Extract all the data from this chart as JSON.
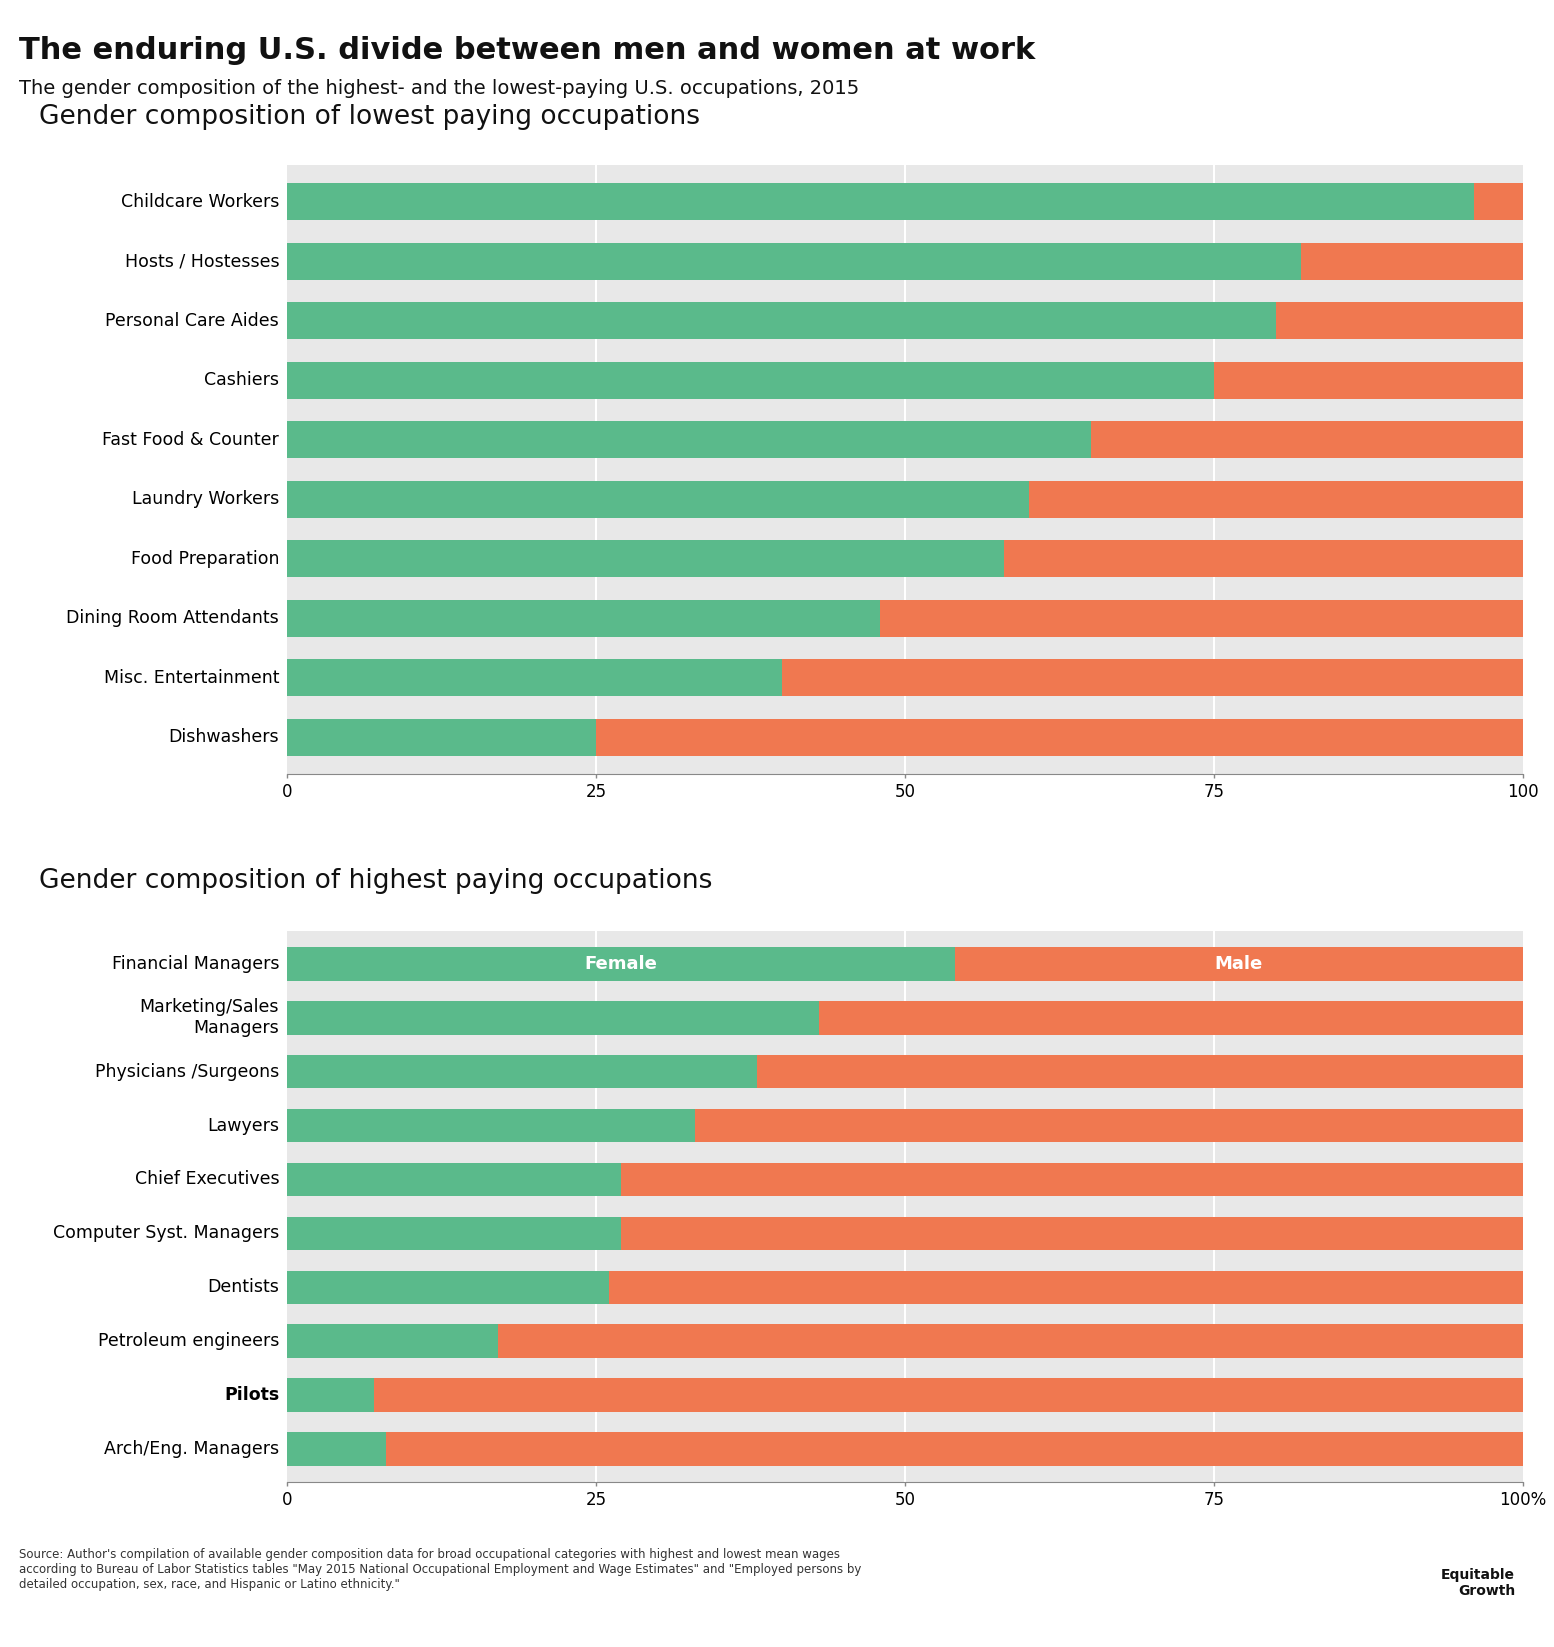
{
  "title": "The enduring U.S. divide between men and women at work",
  "subtitle": "The gender composition of the highest- and the lowest-paying U.S. occupations, 2015",
  "female_color": "#5aba8b",
  "male_color": "#f07850",
  "bg_color": "#e8e8e8",
  "white_color": "#ffffff",
  "top_chart_title": "Gender composition of highest paying occupations",
  "bottom_chart_title": "Gender composition of lowest paying occupations",
  "highest_occupations": [
    "Financial Managers",
    "Marketing/Sales\nManagers",
    "Physicians /Surgeons",
    "Lawyers",
    "Chief Executives",
    "Computer Syst. Managers",
    "Dentists",
    "Petroleum engineers",
    "Pilots",
    "Arch/Eng. Managers"
  ],
  "highest_female": [
    54,
    43,
    38,
    33,
    27,
    27,
    26,
    17,
    7,
    8
  ],
  "lowest_occupations": [
    "Childcare Workers",
    "Hosts / Hostesses",
    "Personal Care Aides",
    "Cashiers",
    "Fast Food & Counter",
    "Laundry Workers",
    "Food Preparation",
    "Dining Room Attendants",
    "Misc. Entertainment",
    "Dishwashers"
  ],
  "lowest_female": [
    96,
    82,
    80,
    75,
    65,
    60,
    58,
    48,
    40,
    25
  ],
  "source_text": "Source: Author's compilation of available gender composition data for broad occupational categories with highest and lowest mean wages\naccording to Bureau of Labor Statistics tables \"May 2015 National Occupational Employment and Wage Estimates\" and \"Employed persons by\ndetailed occupation, sex, race, and Hispanic or Latino ethnicity.\"",
  "pilots_bold": true,
  "bar_height": 0.62
}
